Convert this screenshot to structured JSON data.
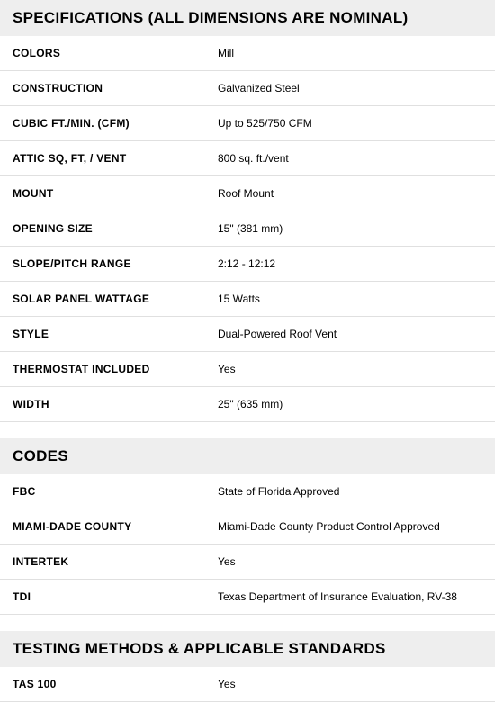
{
  "sections": [
    {
      "title": "SPECIFICATIONS (ALL DIMENSIONS ARE NOMINAL)",
      "rows": [
        {
          "label": "COLORS",
          "value": "Mill"
        },
        {
          "label": "CONSTRUCTION",
          "value": "Galvanized Steel"
        },
        {
          "label": "CUBIC FT./MIN. (CFM)",
          "value": "Up to 525/750 CFM"
        },
        {
          "label": "ATTIC SQ, FT, / VENT",
          "value": "800 sq. ft./vent"
        },
        {
          "label": "MOUNT",
          "value": "Roof Mount"
        },
        {
          "label": "OPENING SIZE",
          "value": "15\" (381 mm)"
        },
        {
          "label": "SLOPE/PITCH RANGE",
          "value": "2:12 - 12:12"
        },
        {
          "label": "SOLAR PANEL WATTAGE",
          "value": "15 Watts"
        },
        {
          "label": "STYLE",
          "value": "Dual-Powered Roof Vent"
        },
        {
          "label": "THERMOSTAT INCLUDED",
          "value": "Yes"
        },
        {
          "label": "WIDTH",
          "value": "25\" (635 mm)"
        }
      ]
    },
    {
      "title": "CODES",
      "rows": [
        {
          "label": "FBC",
          "value": "State of Florida Approved"
        },
        {
          "label": "MIAMI-DADE COUNTY",
          "value": "Miami-Dade County Product Control Approved"
        },
        {
          "label": "INTERTEK",
          "value": "Yes"
        },
        {
          "label": "TDI",
          "value": "Texas Department of Insurance Evaluation, RV-38"
        }
      ]
    },
    {
      "title": "TESTING METHODS & APPLICABLE STANDARDS",
      "rows": [
        {
          "label": "TAS 100",
          "value": "Yes"
        }
      ]
    }
  ],
  "styles": {
    "header_bg": "#eeeeee",
    "border_color": "#e0e0e0",
    "text_color": "#000000",
    "header_fontsize": 17,
    "label_fontsize": 12,
    "value_fontsize": 12
  }
}
